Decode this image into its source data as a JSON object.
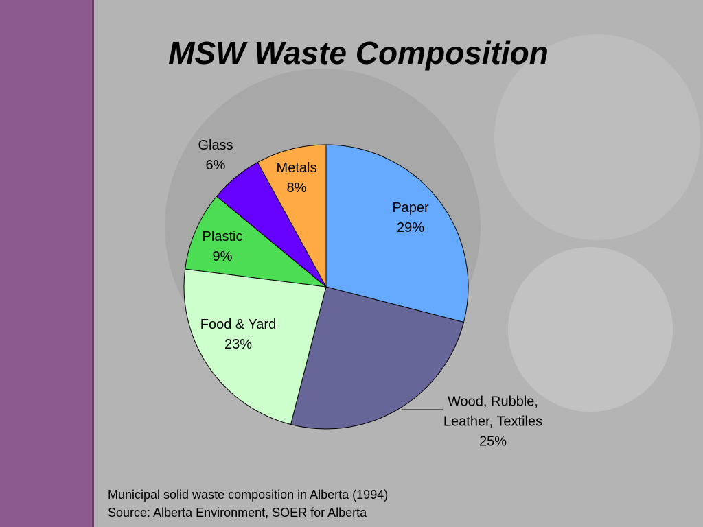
{
  "chart_data": {
    "type": "pie",
    "title": "MSW Waste Composition",
    "categories": [
      "Paper",
      "Wood, Rubble, Leather, Textiles",
      "Food & Yard",
      "Plastic",
      "Glass",
      "Metals"
    ],
    "values": [
      29,
      25,
      23,
      9,
      6,
      8
    ],
    "value_labels": [
      "29%",
      "25%",
      "23%",
      "9%",
      "6%",
      "8%"
    ],
    "colors": [
      "#66aaff",
      "#666699",
      "#ccffcc",
      "#4ddd55",
      "#6600ff",
      "#ffaa44"
    ],
    "notes": [
      "Municipal solid waste composition in Alberta (1994)",
      "Source: Alberta Environment, SOER for Alberta"
    ]
  }
}
